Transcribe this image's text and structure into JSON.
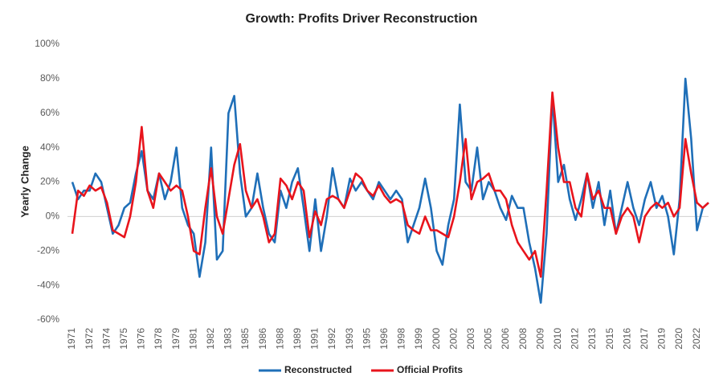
{
  "chart_data": {
    "type": "line",
    "title": "Growth: Profits Driver Reconstruction",
    "y_label": "Yearly Change",
    "categories": [
      "1971",
      null,
      null,
      "1972",
      null,
      null,
      "1974",
      null,
      null,
      "1975",
      null,
      null,
      "1976",
      null,
      null,
      "1978",
      null,
      null,
      "1979",
      null,
      null,
      "1981",
      null,
      null,
      "1982",
      null,
      null,
      "1983",
      null,
      null,
      "1985",
      null,
      null,
      "1986",
      null,
      null,
      "1988",
      null,
      null,
      "1989",
      null,
      null,
      "1991",
      null,
      null,
      "1992",
      null,
      null,
      "1993",
      null,
      null,
      "1995",
      null,
      null,
      "1996",
      null,
      null,
      "1998",
      null,
      null,
      "1999",
      null,
      null,
      "2000",
      null,
      null,
      "2002",
      null,
      null,
      "2003",
      null,
      null,
      "2005",
      null,
      null,
      "2006",
      null,
      null,
      "2008",
      null,
      null,
      "2009",
      null,
      null,
      "2010",
      null,
      null,
      "2012",
      null,
      null,
      "2013",
      null,
      null,
      "2015",
      null,
      null,
      "2016",
      null,
      null,
      "2017",
      null,
      null,
      "2019",
      null,
      null,
      "2020",
      null,
      null,
      "2022",
      null,
      null
    ],
    "series": [
      {
        "name": "Reconstructed",
        "color": "#1f6fb8",
        "values": [
          20,
          10,
          15,
          15,
          25,
          20,
          5,
          -10,
          -5,
          5,
          8,
          25,
          38,
          15,
          10,
          25,
          10,
          20,
          40,
          5,
          -5,
          -10,
          -35,
          -15,
          40,
          -25,
          -20,
          60,
          70,
          25,
          0,
          5,
          25,
          5,
          -10,
          -15,
          15,
          5,
          20,
          28,
          5,
          -20,
          10,
          -20,
          0,
          28,
          10,
          5,
          22,
          15,
          20,
          15,
          10,
          20,
          15,
          10,
          15,
          10,
          -15,
          -5,
          5,
          22,
          5,
          -20,
          -28,
          -5,
          10,
          65,
          20,
          15,
          40,
          10,
          20,
          15,
          5,
          -2,
          12,
          5,
          5,
          -15,
          -30,
          -50,
          -10,
          70,
          20,
          30,
          10,
          -2,
          10,
          25,
          5,
          20,
          -5,
          15,
          -10,
          5,
          20,
          5,
          -5,
          10,
          20,
          5,
          12,
          0,
          -22,
          10,
          80,
          45,
          -8,
          5,
          8
        ]
      },
      {
        "name": "Official Profits",
        "color": "#e8141c",
        "values": [
          -10,
          15,
          12,
          18,
          15,
          17,
          8,
          -8,
          -10,
          -12,
          0,
          20,
          52,
          15,
          5,
          25,
          20,
          15,
          18,
          15,
          0,
          -20,
          -22,
          5,
          28,
          0,
          -10,
          10,
          30,
          42,
          15,
          5,
          10,
          0,
          -15,
          -10,
          22,
          18,
          10,
          20,
          15,
          -12,
          3,
          -5,
          10,
          12,
          10,
          5,
          15,
          25,
          22,
          15,
          12,
          18,
          12,
          8,
          10,
          8,
          -5,
          -8,
          -10,
          0,
          -8,
          -8,
          -10,
          -12,
          0,
          20,
          45,
          10,
          20,
          22,
          25,
          15,
          15,
          10,
          -5,
          -15,
          -20,
          -25,
          -20,
          -35,
          15,
          72,
          40,
          20,
          20,
          5,
          0,
          25,
          10,
          15,
          5,
          5,
          -10,
          0,
          5,
          0,
          -15,
          0,
          5,
          8,
          5,
          8,
          0,
          5,
          45,
          25,
          8,
          5,
          8
        ]
      }
    ],
    "ylim": [
      -60,
      100
    ],
    "yticks": [
      {
        "value": -60,
        "label": "-60%"
      },
      {
        "value": -40,
        "label": "-40%"
      },
      {
        "value": -20,
        "label": "-20%"
      },
      {
        "value": 0,
        "label": "0%"
      },
      {
        "value": 20,
        "label": "20%"
      },
      {
        "value": 40,
        "label": "40%"
      },
      {
        "value": 60,
        "label": "60%"
      },
      {
        "value": 80,
        "label": "80%"
      },
      {
        "value": 100,
        "label": "100%"
      }
    ],
    "grid": false,
    "legend": "bottom"
  }
}
